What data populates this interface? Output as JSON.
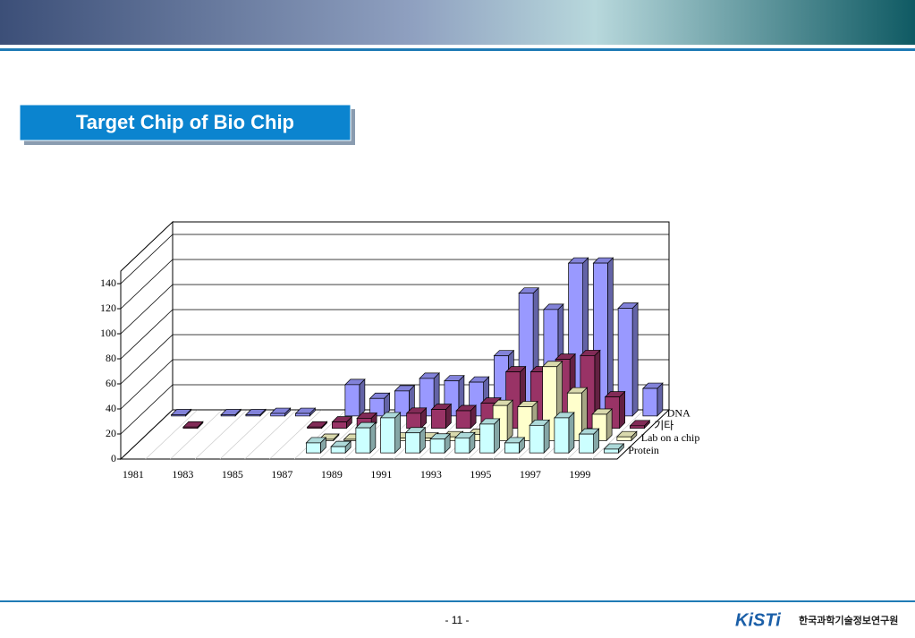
{
  "title_box": {
    "title": "Target Chip of Bio Chip"
  },
  "chart_data": {
    "type": "bar3d",
    "categories": [
      "1981",
      null,
      "1983",
      null,
      "1985",
      null,
      "1987",
      null,
      "1989",
      null,
      "1991",
      null,
      "1993",
      null,
      "1995",
      null,
      "1997",
      null,
      "1999",
      null
    ],
    "series": [
      {
        "name": "Protein",
        "color": "#ccffff",
        "values": [
          null,
          null,
          null,
          null,
          null,
          null,
          null,
          8,
          5,
          20,
          28,
          16,
          11,
          12,
          23,
          8,
          22,
          28,
          15,
          3
        ]
      },
      {
        "name": "Lab on a chip",
        "color": "#ffffcc",
        "values": [
          null,
          null,
          null,
          null,
          null,
          null,
          null,
          1,
          1,
          null,
          2,
          2,
          3,
          5,
          28,
          27,
          59,
          38,
          21,
          3
        ]
      },
      {
        "name": "기타",
        "color": "#993366",
        "values": [
          null,
          1,
          null,
          null,
          null,
          null,
          1,
          5,
          8,
          null,
          12,
          15,
          14,
          20,
          45,
          45,
          55,
          58,
          25,
          2
        ]
      },
      {
        "name": "DNA",
        "color": "#9999ff",
        "values": [
          1,
          null,
          1,
          1,
          2,
          2,
          null,
          25,
          14,
          20,
          30,
          28,
          27,
          48,
          98,
          85,
          122,
          122,
          86,
          22
        ]
      }
    ],
    "ylim": [
      0,
      150
    ],
    "yticks": [
      0,
      20,
      40,
      60,
      80,
      100,
      120,
      140
    ],
    "grid": true
  },
  "footer": {
    "page_number": "- 11 -",
    "logo": "KiSTi",
    "org": "한국과학기술정보연구원"
  }
}
